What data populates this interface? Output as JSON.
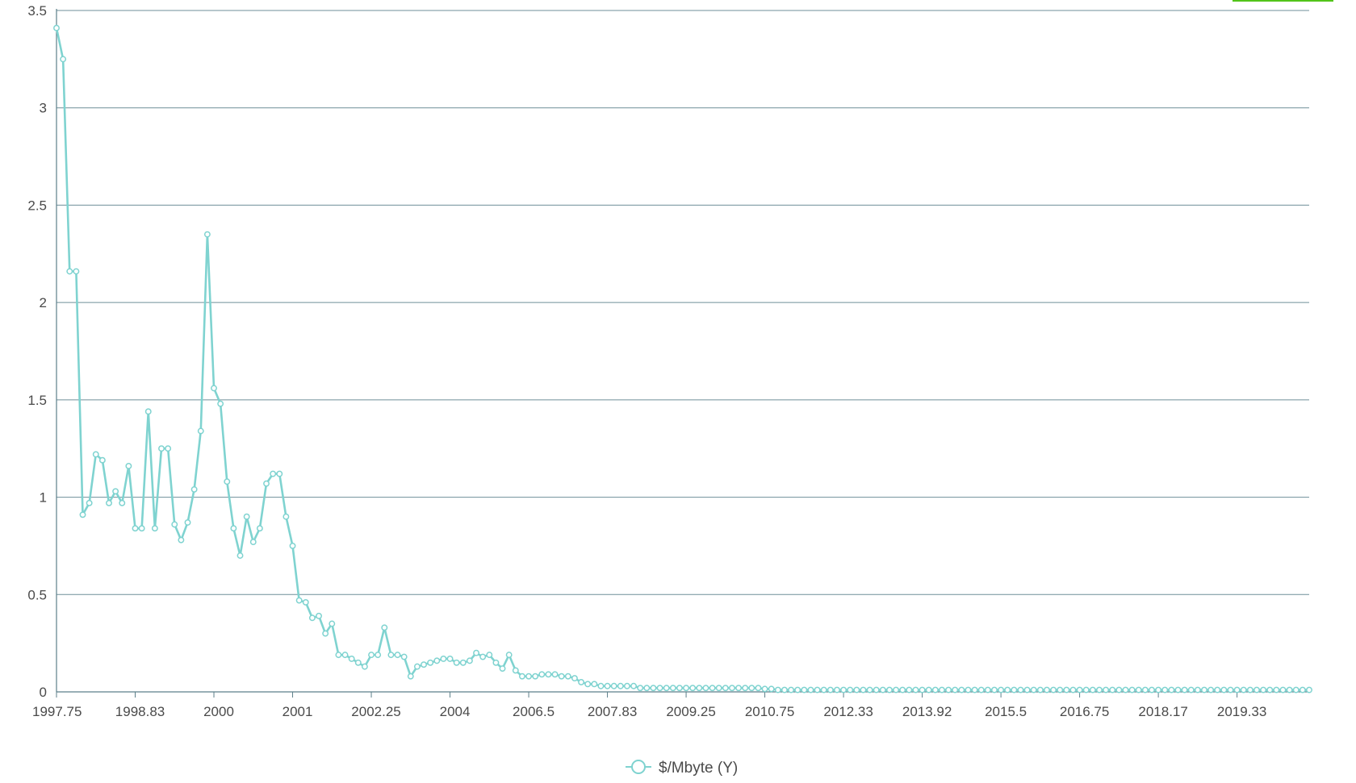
{
  "chart_data": {
    "type": "line",
    "xlabel": "",
    "ylabel": "",
    "ylim": [
      0,
      3.5
    ],
    "y_ticks": [
      "0",
      "0.5",
      "1",
      "1.5",
      "2",
      "2.5",
      "3",
      "3.5"
    ],
    "x_ticks": [
      "1997.75",
      "1998.83",
      "2000",
      "2001",
      "2002.25",
      "2004",
      "2006.5",
      "2007.83",
      "2009.25",
      "2010.75",
      "2012.33",
      "2013.92",
      "2015.5",
      "2016.75",
      "2018.17",
      "2019.33"
    ],
    "grid": true,
    "legend_position": "bottom-center",
    "series": [
      {
        "name": "$/Mbyte (Y)",
        "color": "#7fd3d0",
        "values": [
          3.41,
          3.25,
          2.16,
          2.16,
          0.91,
          0.97,
          1.22,
          1.19,
          0.97,
          1.03,
          0.97,
          1.16,
          0.84,
          0.84,
          1.44,
          0.84,
          1.25,
          1.25,
          0.86,
          0.78,
          0.87,
          1.04,
          1.34,
          2.35,
          1.56,
          1.48,
          1.08,
          0.84,
          0.7,
          0.9,
          0.77,
          0.84,
          1.07,
          1.12,
          1.12,
          0.9,
          0.75,
          0.47,
          0.46,
          0.38,
          0.39,
          0.3,
          0.35,
          0.19,
          0.19,
          0.17,
          0.15,
          0.13,
          0.19,
          0.19,
          0.33,
          0.19,
          0.19,
          0.18,
          0.08,
          0.13,
          0.14,
          0.15,
          0.16,
          0.17,
          0.17,
          0.15,
          0.15,
          0.16,
          0.2,
          0.18,
          0.19,
          0.15,
          0.12,
          0.19,
          0.11,
          0.08,
          0.08,
          0.08,
          0.09,
          0.09,
          0.09,
          0.08,
          0.08,
          0.07,
          0.05,
          0.04,
          0.04,
          0.03,
          0.03,
          0.03,
          0.03,
          0.03,
          0.03,
          0.02,
          0.02,
          0.02,
          0.02,
          0.02,
          0.02,
          0.02,
          0.02,
          0.02,
          0.02,
          0.02,
          0.02,
          0.02,
          0.02,
          0.02,
          0.02,
          0.02,
          0.02,
          0.02,
          0.015,
          0.015,
          0.01,
          0.01,
          0.01,
          0.01,
          0.01,
          0.01,
          0.01,
          0.01,
          0.01,
          0.01,
          0.01,
          0.01,
          0.01,
          0.01,
          0.01,
          0.01,
          0.01,
          0.01,
          0.01,
          0.01,
          0.01,
          0.01,
          0.01,
          0.01,
          0.01,
          0.01,
          0.01,
          0.01,
          0.01,
          0.01,
          0.01,
          0.01,
          0.01,
          0.01,
          0.01,
          0.01,
          0.01,
          0.01,
          0.01,
          0.01,
          0.01,
          0.01,
          0.01,
          0.01,
          0.01,
          0.01,
          0.01,
          0.01,
          0.01,
          0.01,
          0.01,
          0.01,
          0.01,
          0.01,
          0.01,
          0.01,
          0.01,
          0.01,
          0.01,
          0.01,
          0.01,
          0.01,
          0.01,
          0.01,
          0.01,
          0.01,
          0.01,
          0.01,
          0.01,
          0.01,
          0.01,
          0.01,
          0.01,
          0.01,
          0.01,
          0.01,
          0.01,
          0.01,
          0.01,
          0.01,
          0.01,
          0.01
        ]
      }
    ]
  }
}
